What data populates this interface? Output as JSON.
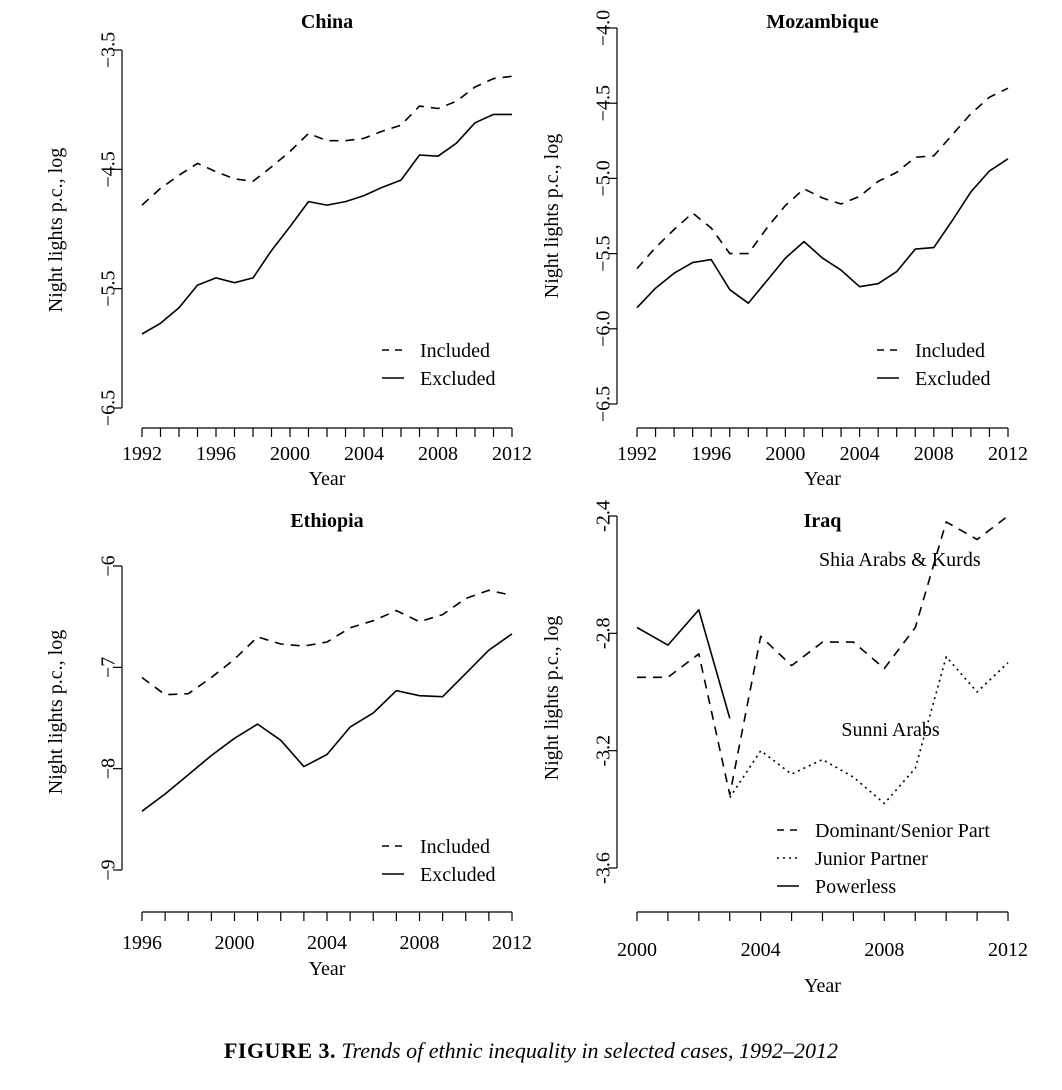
{
  "figure": {
    "caption_label": "FIGURE 3.",
    "caption_text": "Trends of ethnic inequality in selected cases, 1992–2012"
  },
  "chart_data": [
    {
      "type": "line",
      "title": "China",
      "xlabel": "Year",
      "ylabel": "Night lights p.c., log",
      "xlim": [
        1992,
        2012
      ],
      "ylim": [
        -6.5,
        -3.5
      ],
      "xticks": [
        "1992",
        "1996",
        "2000",
        "2004",
        "2008",
        "2012"
      ],
      "xtick_values": [
        1992,
        1996,
        2000,
        2004,
        2008,
        2012
      ],
      "yticks": [
        "−6.5",
        "−5.5",
        "−4.5",
        "−3.5"
      ],
      "ytick_values": [
        -6.5,
        -5.5,
        -4.5,
        -3.5
      ],
      "legend_position": "bottom-right",
      "x": [
        1992,
        1993,
        1994,
        1995,
        1996,
        1997,
        1998,
        1999,
        2000,
        2001,
        2002,
        2003,
        2004,
        2005,
        2006,
        2007,
        2008,
        2009,
        2010,
        2011,
        2012
      ],
      "series": [
        {
          "name": "Included",
          "line_style": "dashed",
          "values": [
            -4.8,
            -4.66,
            -4.55,
            -4.45,
            -4.52,
            -4.58,
            -4.6,
            -4.48,
            -4.35,
            -4.2,
            -4.26,
            -4.26,
            -4.24,
            -4.18,
            -4.13,
            -3.97,
            -3.99,
            -3.93,
            -3.81,
            -3.74,
            -3.72
          ]
        },
        {
          "name": "Excluded",
          "line_style": "solid",
          "values": [
            -5.88,
            -5.79,
            -5.66,
            -5.47,
            -5.41,
            -5.45,
            -5.41,
            -5.18,
            -4.98,
            -4.77,
            -4.8,
            -4.77,
            -4.72,
            -4.65,
            -4.59,
            -4.38,
            -4.39,
            -4.28,
            -4.11,
            -4.04,
            -4.04
          ]
        }
      ]
    },
    {
      "type": "line",
      "title": "Mozambique",
      "xlabel": "Year",
      "ylabel": "Night lights p.c., log",
      "xlim": [
        1992,
        2012
      ],
      "ylim": [
        -6.5,
        -4.0
      ],
      "xticks": [
        "1992",
        "1996",
        "2000",
        "2004",
        "2008",
        "2012"
      ],
      "xtick_values": [
        1992,
        1996,
        2000,
        2004,
        2008,
        2012
      ],
      "yticks": [
        "−6.5",
        "−6.0",
        "−5.5",
        "−5.0",
        "−4.5",
        "−4.0"
      ],
      "ytick_values": [
        -6.5,
        -6.0,
        -5.5,
        -5.0,
        -4.5,
        -4.0
      ],
      "legend_position": "bottom-right",
      "x": [
        1992,
        1993,
        1994,
        1995,
        1996,
        1997,
        1998,
        1999,
        2000,
        2001,
        2002,
        2003,
        2004,
        2005,
        2006,
        2007,
        2008,
        2009,
        2010,
        2011,
        2012
      ],
      "series": [
        {
          "name": "Included",
          "line_style": "dashed",
          "values": [
            -5.6,
            -5.46,
            -5.34,
            -5.23,
            -5.33,
            -5.5,
            -5.5,
            -5.33,
            -5.18,
            -5.07,
            -5.13,
            -5.17,
            -5.12,
            -5.02,
            -4.96,
            -4.86,
            -4.85,
            -4.71,
            -4.57,
            -4.46,
            -4.4
          ]
        },
        {
          "name": "Excluded",
          "line_style": "solid",
          "values": [
            -5.86,
            -5.73,
            -5.63,
            -5.56,
            -5.54,
            -5.74,
            -5.83,
            -5.68,
            -5.53,
            -5.42,
            -5.53,
            -5.61,
            -5.72,
            -5.7,
            -5.62,
            -5.47,
            -5.46,
            -5.28,
            -5.09,
            -4.95,
            -4.87
          ]
        }
      ]
    },
    {
      "type": "line",
      "title": "Ethiopia",
      "xlabel": "Year",
      "ylabel": "Night lights p.c., log",
      "xlim": [
        1996,
        2012
      ],
      "ylim": [
        -9,
        -6
      ],
      "xticks": [
        "1996",
        "2000",
        "2004",
        "2008",
        "2012"
      ],
      "xtick_values": [
        1996,
        2000,
        2004,
        2008,
        2012
      ],
      "yticks": [
        "−9",
        "−8",
        "−7",
        "−6"
      ],
      "ytick_values": [
        -9,
        -8,
        -7,
        -6
      ],
      "legend_position": "bottom-right",
      "x": [
        1996,
        1997,
        1998,
        1999,
        2000,
        2001,
        2002,
        2003,
        2004,
        2005,
        2006,
        2007,
        2008,
        2009,
        2010,
        2011,
        2012
      ],
      "series": [
        {
          "name": "Included",
          "line_style": "dashed",
          "values": [
            -7.1,
            -7.27,
            -7.26,
            -7.1,
            -6.92,
            -6.7,
            -6.77,
            -6.79,
            -6.75,
            -6.61,
            -6.54,
            -6.44,
            -6.55,
            -6.48,
            -6.32,
            -6.24,
            -6.29
          ]
        },
        {
          "name": "Excluded",
          "line_style": "solid",
          "values": [
            -8.42,
            -8.25,
            -8.06,
            -7.87,
            -7.7,
            -7.56,
            -7.72,
            -7.98,
            -7.86,
            -7.59,
            -7.45,
            -7.23,
            -7.28,
            -7.29,
            -7.06,
            -6.83,
            -6.67
          ]
        }
      ]
    },
    {
      "type": "line",
      "title": "Iraq",
      "xlabel": "Year",
      "ylabel": "Night lights p.c., log",
      "xlim": [
        2000,
        2012
      ],
      "ylim": [
        -3.6,
        -2.4
      ],
      "xticks": [
        "2000",
        "2004",
        "2008",
        "2012"
      ],
      "xtick_values": [
        2000,
        2004,
        2008,
        2012
      ],
      "yticks": [
        "-3.6",
        "-3.2",
        "-2.8",
        "-2.4"
      ],
      "ytick_values": [
        -3.6,
        -3.2,
        -2.8,
        -2.4
      ],
      "legend_position": "bottom-right",
      "annotations": [
        {
          "text": "Shia Arabs & Kurds",
          "x": 2008.5,
          "y": -2.57
        },
        {
          "text": "Sunni Arabs",
          "x": 2008.2,
          "y": -3.15
        }
      ],
      "x": [
        2000,
        2001,
        2002,
        2003,
        2004,
        2005,
        2006,
        2007,
        2008,
        2009,
        2010,
        2011,
        2012
      ],
      "series": [
        {
          "name": "Dominant/Senior Part",
          "line_style": "dashed",
          "values": [
            -2.95,
            -2.95,
            -2.87,
            -3.35,
            -2.81,
            -2.91,
            -2.83,
            -2.83,
            -2.92,
            -2.78,
            -2.42,
            -2.48,
            -2.4
          ]
        },
        {
          "name": "Junior Partner",
          "line_style": "dotted",
          "values": [
            null,
            null,
            null,
            -3.36,
            -3.2,
            -3.28,
            -3.23,
            -3.29,
            -3.38,
            -3.26,
            -2.88,
            -3.0,
            -2.9
          ]
        },
        {
          "name": "Powerless",
          "line_style": "solid",
          "values": [
            -2.78,
            -2.84,
            -2.72,
            -3.09,
            null,
            null,
            null,
            null,
            null,
            null,
            null,
            null,
            null
          ]
        }
      ]
    }
  ]
}
